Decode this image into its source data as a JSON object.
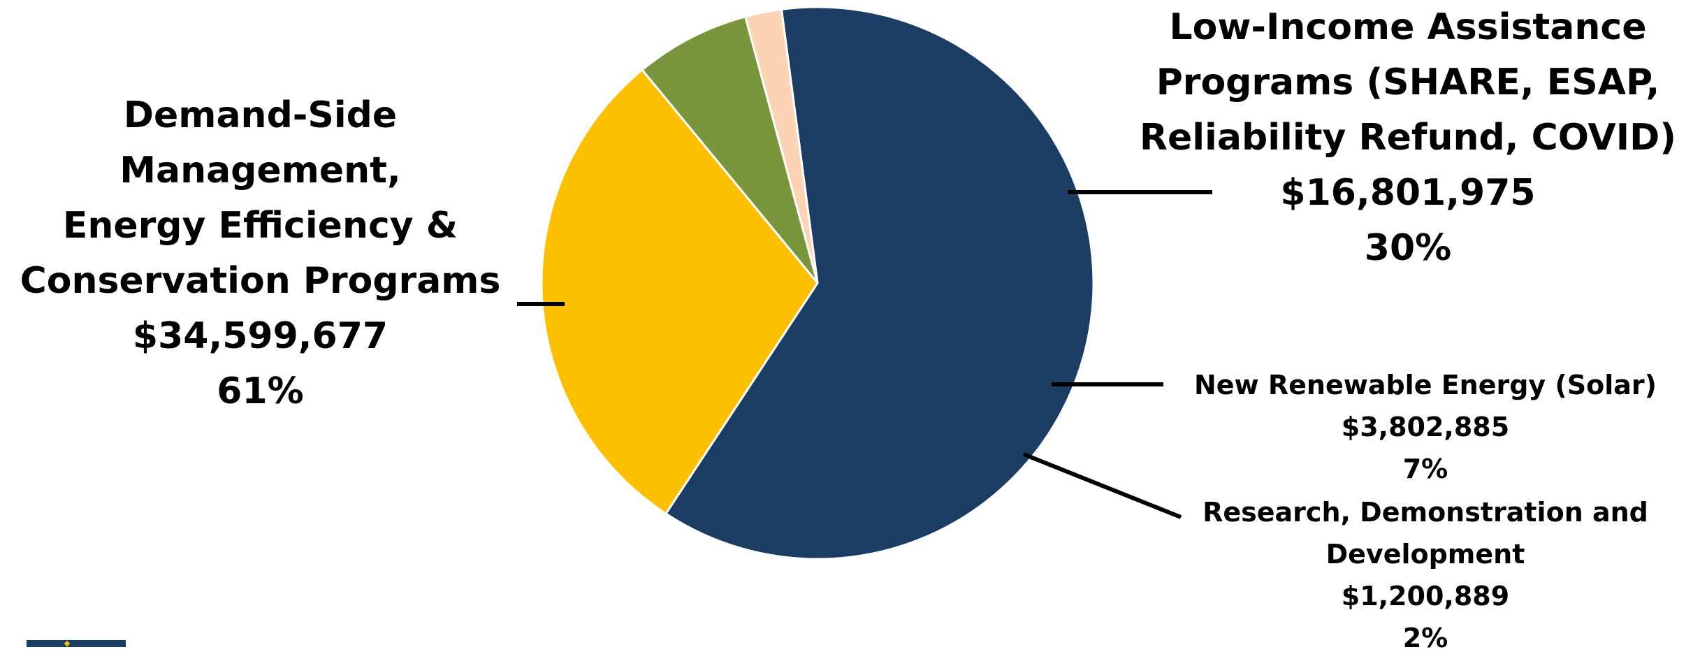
{
  "chart_data": {
    "type": "pie",
    "total": 56405426,
    "slices": [
      {
        "lines": [
          "Demand-Side",
          "Management,",
          "Energy Efficiency &",
          "Conservation Programs"
        ],
        "amount_label": "$34,599,677",
        "pct_label": "61%",
        "value": 34599677,
        "color": "#1b3c63"
      },
      {
        "lines": [
          "Low-Income Assistance",
          "Programs (SHARE, ESAP,",
          "Reliability Refund, COVID)"
        ],
        "amount_label": "$16,801,975",
        "pct_label": "30%",
        "value": 16801975,
        "color": "#fdc000"
      },
      {
        "lines": [
          "New Renewable Energy (Solar)"
        ],
        "amount_label": "$3,802,885",
        "pct_label": "7%",
        "value": 3802885,
        "color": "#7a963c"
      },
      {
        "lines": [
          "Research, Demonstration and",
          "Development"
        ],
        "amount_label": "$1,200,889",
        "pct_label": "2%",
        "value": 1200889,
        "color": "#fcd4b5"
      }
    ],
    "legend": "none"
  },
  "logo": {
    "name": "utility-logo",
    "color": "#1b3c63",
    "accent": "#f8c300"
  }
}
